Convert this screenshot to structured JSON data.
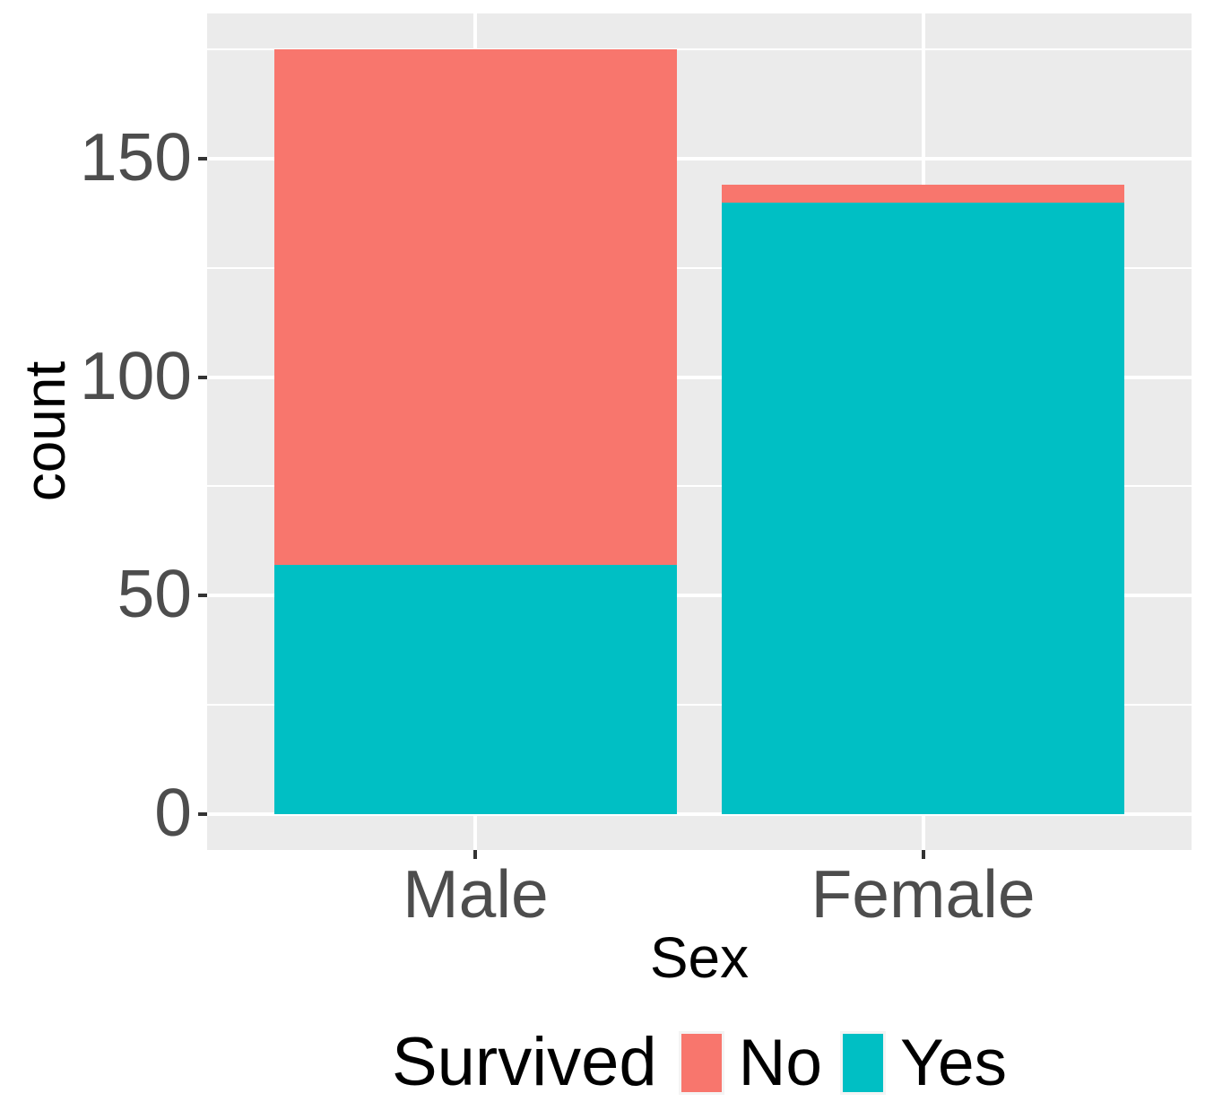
{
  "chart_data": {
    "type": "bar",
    "stacked": true,
    "title": "",
    "xlabel": "Sex",
    "ylabel": "count",
    "categories": [
      "Male",
      "Female"
    ],
    "series": [
      {
        "name": "No",
        "color": "#F8766D",
        "values": [
          118,
          4
        ]
      },
      {
        "name": "Yes",
        "color": "#00BFC4",
        "values": [
          57,
          140
        ]
      }
    ],
    "stack_bottom_to_top": [
      "Yes",
      "No"
    ],
    "totals": [
      175,
      144
    ],
    "y_major_ticks": [
      0,
      50,
      100,
      150
    ],
    "y_minor_ticks": [
      25,
      75,
      125,
      175
    ],
    "ylim": [
      0,
      175
    ],
    "grid": true,
    "legend": {
      "title": "Survived",
      "position": "bottom"
    }
  },
  "style": {
    "panel_bg": "#EBEBEB",
    "grid_color": "#FFFFFF",
    "bar_no_color": "#F8766D",
    "bar_yes_color": "#00BFC4",
    "tick_mark_color": "#333333",
    "tick_label_color": "#4D4D4D",
    "title_color": "#000000",
    "figure_bg": "#FFFFFF"
  }
}
